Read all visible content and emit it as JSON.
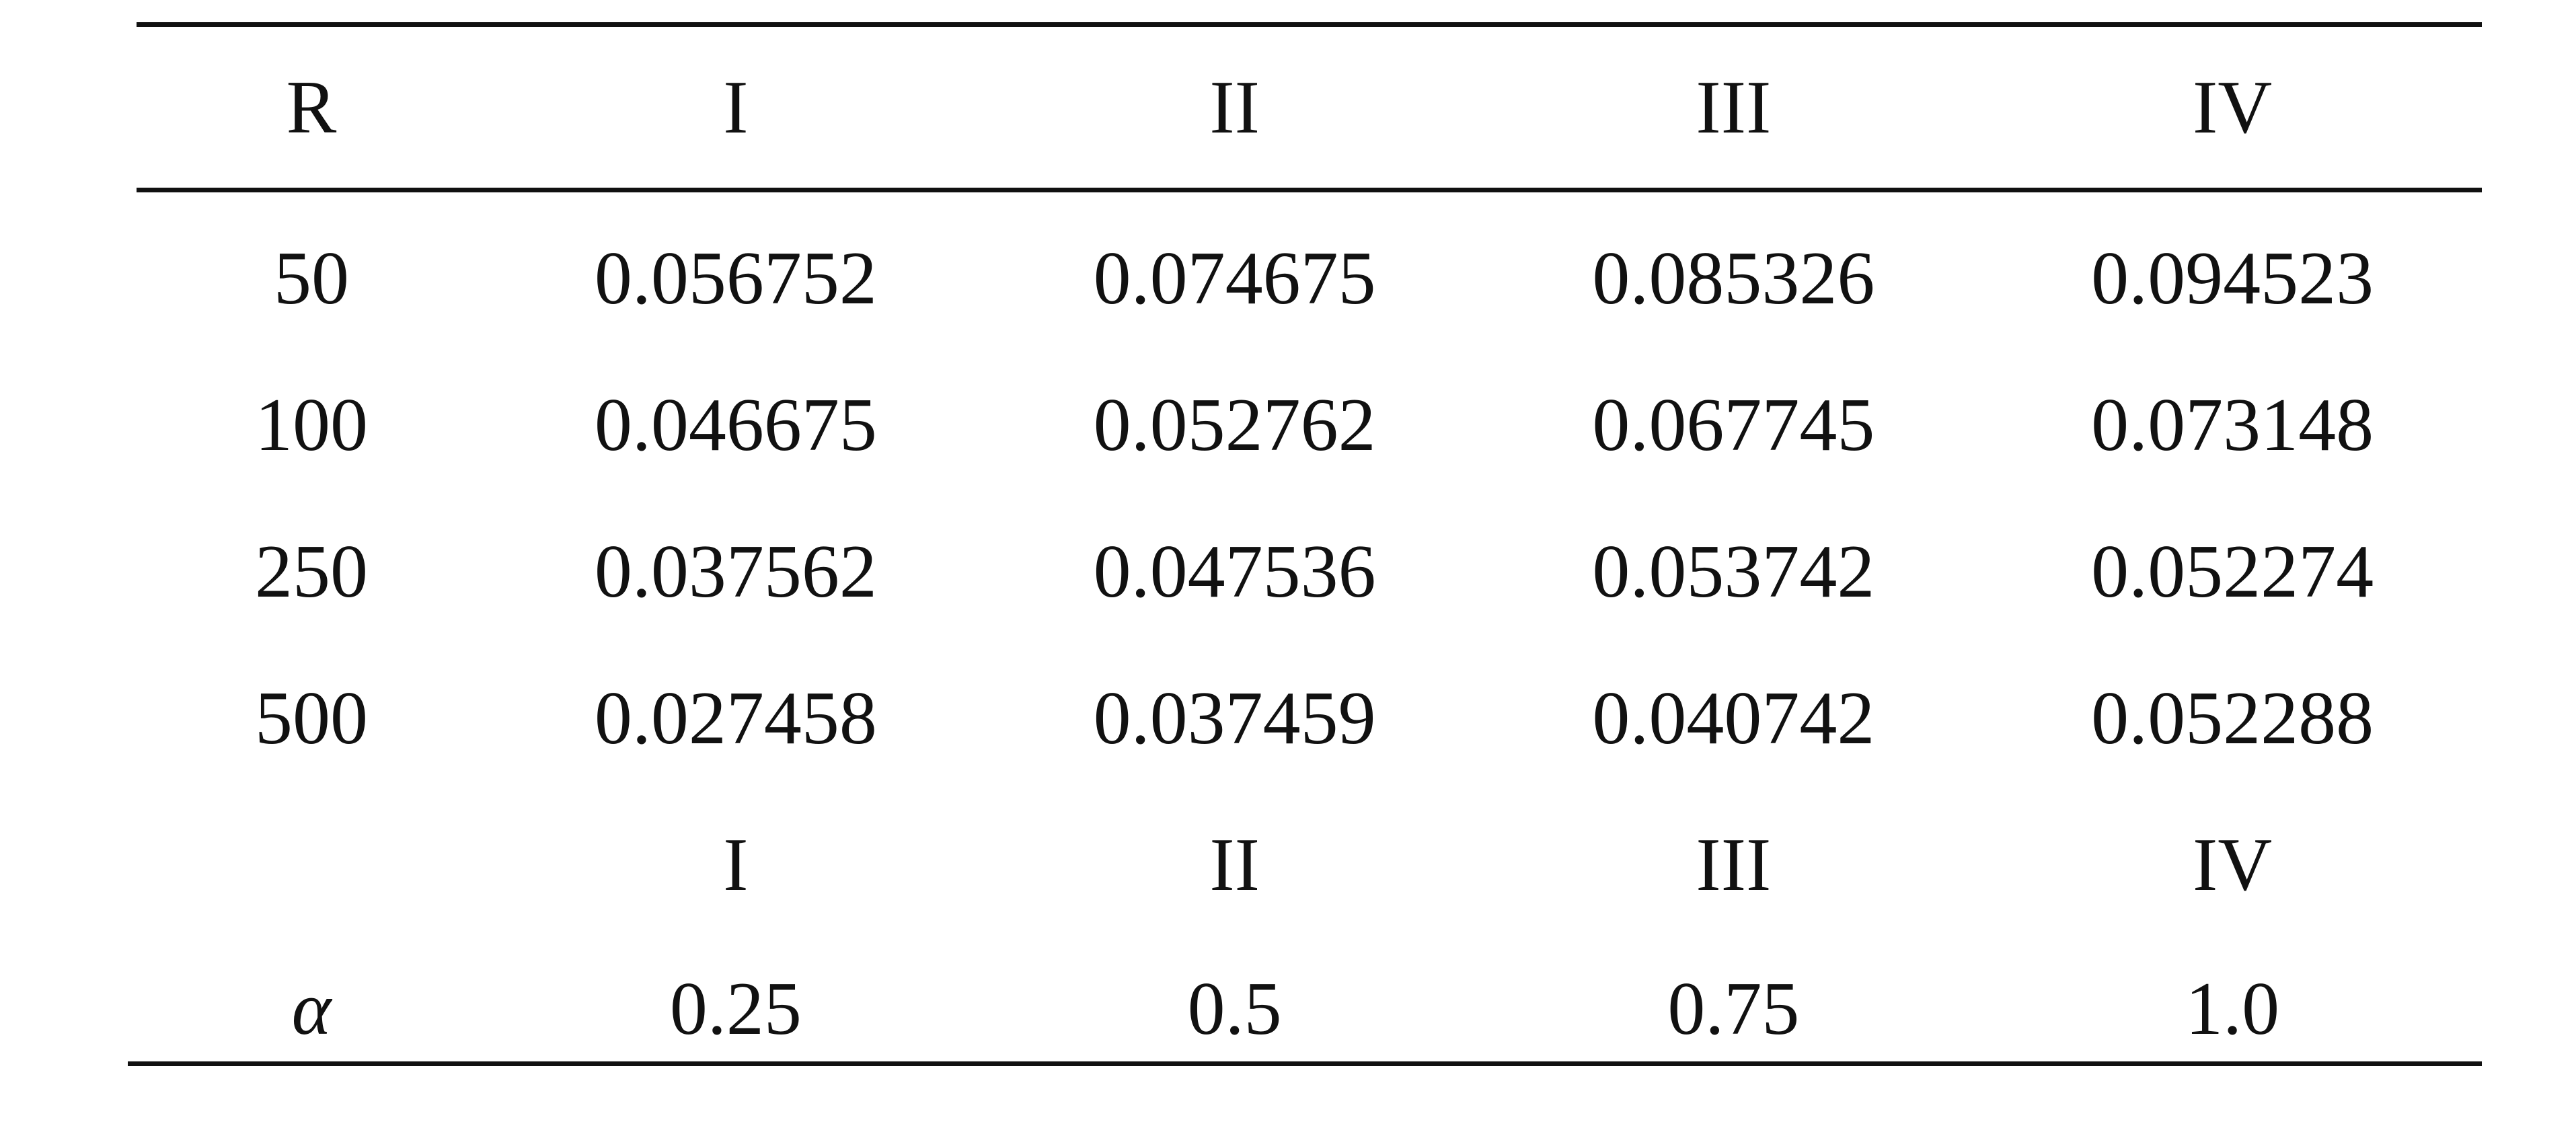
{
  "table": {
    "header": [
      "R",
      "I",
      "II",
      "III",
      "IV"
    ],
    "rows": [
      [
        "50",
        "0.056752",
        "0.074675",
        "0.085326",
        "0.094523"
      ],
      [
        "100",
        "0.046675",
        "0.052762",
        "0.067745",
        "0.073148"
      ],
      [
        "250",
        "0.037562",
        "0.047536",
        "0.053742",
        "0.052274"
      ],
      [
        "500",
        "0.027458",
        "0.037459",
        "0.040742",
        "0.052288"
      ]
    ],
    "alpha_header": [
      "",
      "I",
      "II",
      "III",
      "IV"
    ],
    "alpha_row": [
      "α",
      "0.25",
      "0.5",
      "0.75",
      "1.0"
    ]
  }
}
